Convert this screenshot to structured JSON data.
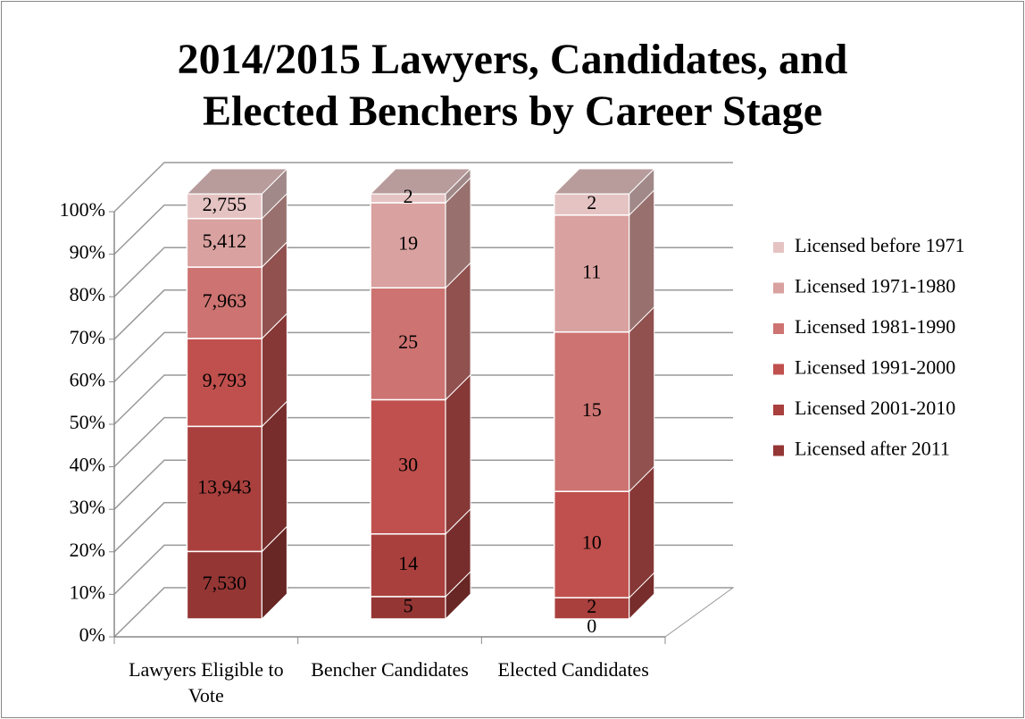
{
  "chart_data": {
    "type": "bar",
    "stack": "percent",
    "title": "2014/2015 Lawyers, Candidates, and Elected Benchers by Career Stage",
    "categories": [
      "Lawyers Eligible to Vote",
      "Bencher Candidates",
      "Elected Candidates"
    ],
    "series": [
      {
        "name": "Licensed after 2011",
        "color": "#943634",
        "values": [
          7530,
          5,
          0
        ],
        "value_labels": [
          "7,530",
          "5",
          "0"
        ]
      },
      {
        "name": "Licensed 2001-2010",
        "color": "#a9403d",
        "values": [
          13943,
          14,
          2
        ],
        "value_labels": [
          "13,943",
          "14",
          "2"
        ]
      },
      {
        "name": "Licensed 1991-2000",
        "color": "#c0504d",
        "values": [
          9793,
          30,
          10
        ],
        "value_labels": [
          "9,793",
          "30",
          "10"
        ]
      },
      {
        "name": "Licensed 1981-1990",
        "color": "#cd7371",
        "values": [
          7963,
          25,
          15
        ],
        "value_labels": [
          "7,963",
          "25",
          "15"
        ]
      },
      {
        "name": "Licensed 1971-1980",
        "color": "#d9a19f",
        "values": [
          5412,
          19,
          11
        ],
        "value_labels": [
          "5,412",
          "19",
          "11"
        ]
      },
      {
        "name": "Licensed before 1971",
        "color": "#e6c3c3",
        "values": [
          2755,
          2,
          2
        ],
        "value_labels": [
          "2,755",
          "2",
          "2"
        ]
      }
    ],
    "ylim": [
      0,
      100
    ],
    "yticks": [
      {
        "value": 0,
        "label": "0%"
      },
      {
        "value": 10,
        "label": "10%"
      },
      {
        "value": 20,
        "label": "20%"
      },
      {
        "value": 30,
        "label": "30%"
      },
      {
        "value": 40,
        "label": "40%"
      },
      {
        "value": 50,
        "label": "50%"
      },
      {
        "value": 60,
        "label": "60%"
      },
      {
        "value": 70,
        "label": "70%"
      },
      {
        "value": 80,
        "label": "80%"
      },
      {
        "value": 90,
        "label": "90%"
      },
      {
        "value": 100,
        "label": "100%"
      }
    ],
    "grid": true,
    "legend": "right"
  }
}
